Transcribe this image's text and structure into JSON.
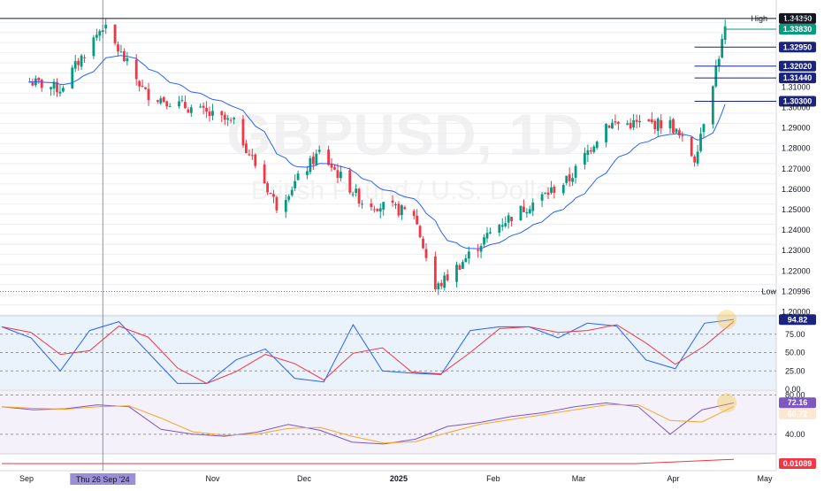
{
  "chart_data": {
    "type": "candlestick",
    "symbol": "GBPUSD",
    "timeframe": "1D",
    "title": "GBPUSD, 1D",
    "subtitle": "British Pound / U.S. Dollar",
    "x_labels": [
      "Sep",
      "Nov",
      "Dec",
      "2025",
      "Feb",
      "Mar",
      "Apr",
      "May"
    ],
    "x_date_range": [
      "2024-09-01",
      "2025-05-01"
    ],
    "crosshair_date_label": "Thu 26 Sep '24",
    "y_ticks": [
      "1.34350",
      "1.34343",
      "1.31000",
      "1.30000",
      "1.29000",
      "1.28000",
      "1.27000",
      "1.26000",
      "1.25000",
      "1.24000",
      "1.23000",
      "1.22000",
      "1.20000"
    ],
    "ylim": [
      1.1985,
      1.3465
    ],
    "high": {
      "label": "High",
      "value": "1.34343"
    },
    "low": {
      "label": "Low",
      "value": "1.20996"
    },
    "price_levels": [
      {
        "value": "1.34350",
        "color": "#131722"
      },
      {
        "value": "1.33830",
        "color": "#089981"
      },
      {
        "value": "1.32950",
        "color": "#1a237e"
      },
      {
        "value": "1.32020",
        "color": "#1a237e"
      },
      {
        "value": "1.31440",
        "color": "#1a237e"
      },
      {
        "value": "1.30300",
        "color": "#1a237e"
      }
    ],
    "candles_approx": [
      {
        "date": "2024-09-01",
        "close": 1.313
      },
      {
        "date": "2024-09-12",
        "close": 1.309
      },
      {
        "date": "2024-09-26",
        "close": 1.34
      },
      {
        "date": "2024-10-10",
        "close": 1.307
      },
      {
        "date": "2024-10-28",
        "close": 1.298
      },
      {
        "date": "2024-11-08",
        "close": 1.292
      },
      {
        "date": "2024-11-22",
        "close": 1.252
      },
      {
        "date": "2024-12-06",
        "close": 1.278
      },
      {
        "date": "2024-12-20",
        "close": 1.254
      },
      {
        "date": "2025-01-06",
        "close": 1.248
      },
      {
        "date": "2025-01-13",
        "close": 1.211
      },
      {
        "date": "2025-02-03",
        "close": 1.243
      },
      {
        "date": "2025-02-26",
        "close": 1.265
      },
      {
        "date": "2025-03-10",
        "close": 1.292
      },
      {
        "date": "2025-03-31",
        "close": 1.292
      },
      {
        "date": "2025-04-08",
        "close": 1.275
      },
      {
        "date": "2025-04-18",
        "close": 1.3383
      }
    ],
    "stochastic": {
      "ticks": [
        "75.00",
        "50.00",
        "25.00",
        "0.00"
      ],
      "ylim": [
        0,
        100
      ],
      "current": "94.82",
      "series": [
        {
          "values": [
            85,
            70,
            25,
            80,
            92,
            50,
            8,
            8,
            40,
            55,
            15,
            10,
            88,
            25,
            22,
            20,
            80,
            85,
            85,
            70,
            90,
            86,
            40,
            28,
            90,
            95
          ]
        }
      ]
    },
    "rsi": {
      "ticks": [
        "80.00",
        "40.00"
      ],
      "ylim": [
        20,
        85
      ],
      "current": "72.16",
      "ma_value": "60.72",
      "series": [
        {
          "values": [
            68,
            65,
            66,
            70,
            68,
            45,
            40,
            38,
            42,
            50,
            44,
            32,
            30,
            35,
            48,
            52,
            58,
            62,
            68,
            72,
            68,
            40,
            65,
            72
          ]
        }
      ]
    },
    "bottom_indicator": {
      "current": "0.01089"
    }
  }
}
